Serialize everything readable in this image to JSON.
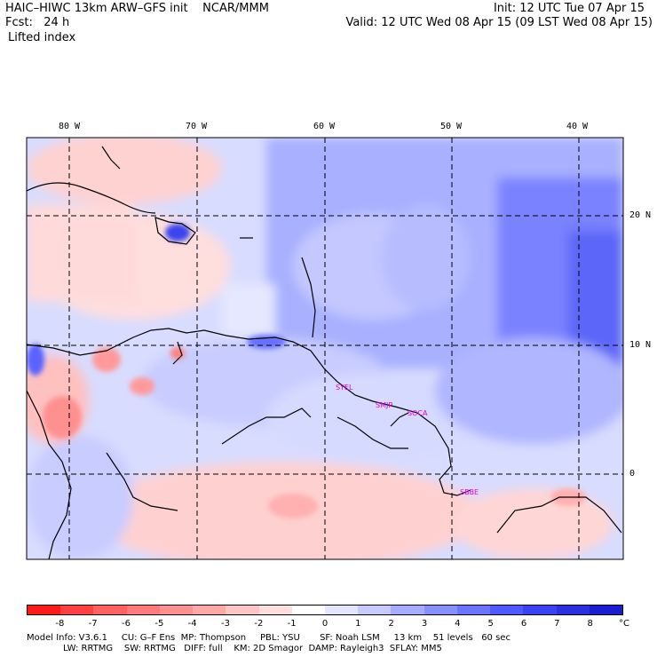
{
  "header": {
    "title": "HAIC–HIWC 13km ARW–GFS init    NCAR/MMM",
    "forecast": "Fcst:   24 h",
    "field": "Lifted index",
    "init": "Init: 12 UTC Tue 07 Apr 15",
    "valid": "Valid: 12 UTC Wed 08 Apr 15 (09 LST Wed 08 Apr 15)"
  },
  "map": {
    "longitude_labels": [
      "80 W",
      "70 W",
      "60 W",
      "50 W",
      "40 W"
    ],
    "latitude_labels": [
      "20 N",
      "10 N",
      "0"
    ],
    "stations": [
      "SYEL",
      "SMJP",
      "SOCA",
      "SBBE"
    ],
    "colors": {
      "border": "#000000",
      "gridline": "#000000",
      "station": "#e000e0"
    }
  },
  "colorbar": {
    "ticks": [
      "-8",
      "-7",
      "-6",
      "-5",
      "-4",
      "-3",
      "-2",
      "-1",
      "0",
      "1",
      "2",
      "3",
      "4",
      "5",
      "6",
      "7",
      "8"
    ],
    "unit": "°C",
    "colors": [
      "#ff1a1a",
      "#ff4040",
      "#ff6060",
      "#ff7a7a",
      "#ff9090",
      "#ffa8a8",
      "#ffc4c4",
      "#ffdede",
      "#ffffff",
      "#e4e6ff",
      "#c6caff",
      "#a6acff",
      "#8890ff",
      "#6c74ff",
      "#5058ff",
      "#3a42f4",
      "#2a30e0",
      "#1a1ed0"
    ]
  },
  "model_info": {
    "line1": "Model Info: V3.6.1     CU: G–F Ens  MP: Thompson     PBL: YSU       SF: Noah LSM     13 km    51 levels   60 sec",
    "line2": "LW: RRTMG    SW: RRTMG   DIFF: full    KM: 2D Smagor  DAMP: Rayleigh3  SFLAY: MM5"
  }
}
